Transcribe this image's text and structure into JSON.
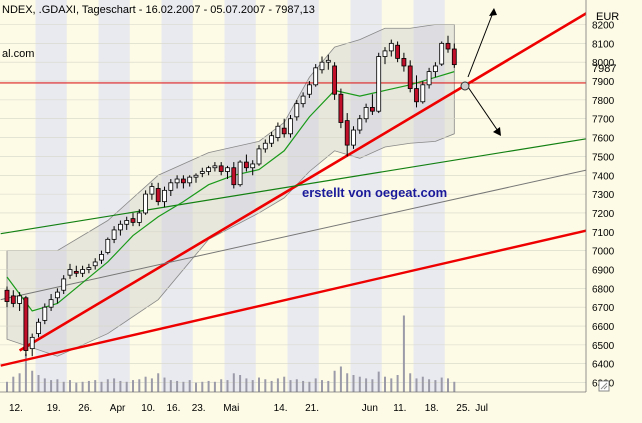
{
  "header": {
    "title": "NDEX, .GDAXI, Tageschart - 16.02.2007 - 05.07.2007 - 7987,13",
    "left_fragment": "al.com"
  },
  "currency_label": "EUR",
  "watermark": "erstellt von oegeat.com",
  "last_price_label": "7987",
  "chart_data": {
    "type": "candlestick",
    "title": "NDEX, .GDAXI, Tageschart - 16.02.2007 - 05.07.2007 - 7987,13",
    "ylim": [
      6250,
      8330
    ],
    "y_ticks": [
      6300,
      6400,
      6500,
      6600,
      6700,
      6800,
      6900,
      7000,
      7100,
      7200,
      7300,
      7400,
      7500,
      7600,
      7700,
      7800,
      7900,
      8000,
      8100,
      8200
    ],
    "x_ticks": [
      "12.",
      "19.",
      "26.",
      "Apr",
      "10.",
      "16.",
      "23.",
      "Mai",
      "14.",
      "21.",
      "Jun",
      "11.",
      "18.",
      "25.",
      "Jul"
    ],
    "horizontal_line": 7890,
    "candles_ohlc": [
      [
        6790,
        6810,
        6700,
        6730
      ],
      [
        6760,
        6790,
        6700,
        6720
      ],
      [
        6720,
        6780,
        6680,
        6760
      ],
      [
        6750,
        6760,
        6440,
        6470
      ],
      [
        6480,
        6560,
        6440,
        6540
      ],
      [
        6560,
        6640,
        6540,
        6620
      ],
      [
        6630,
        6720,
        6610,
        6700
      ],
      [
        6700,
        6770,
        6680,
        6740
      ],
      [
        6750,
        6800,
        6720,
        6780
      ],
      [
        6790,
        6870,
        6770,
        6850
      ],
      [
        6870,
        6930,
        6850,
        6900
      ],
      [
        6890,
        6920,
        6860,
        6880
      ],
      [
        6880,
        6920,
        6860,
        6900
      ],
      [
        6900,
        6930,
        6880,
        6910
      ],
      [
        6920,
        6960,
        6900,
        6940
      ],
      [
        6950,
        7000,
        6930,
        6980
      ],
      [
        6990,
        7070,
        6980,
        7060
      ],
      [
        7060,
        7130,
        7040,
        7110
      ],
      [
        7110,
        7160,
        7080,
        7140
      ],
      [
        7140,
        7180,
        7110,
        7160
      ],
      [
        7170,
        7200,
        7130,
        7150
      ],
      [
        7150,
        7220,
        7130,
        7200
      ],
      [
        7200,
        7320,
        7190,
        7300
      ],
      [
        7300,
        7360,
        7270,
        7340
      ],
      [
        7330,
        7360,
        7240,
        7260
      ],
      [
        7260,
        7340,
        7230,
        7320
      ],
      [
        7320,
        7380,
        7290,
        7360
      ],
      [
        7360,
        7400,
        7330,
        7380
      ],
      [
        7380,
        7400,
        7330,
        7360
      ],
      [
        7360,
        7400,
        7340,
        7390
      ],
      [
        7390,
        7410,
        7360,
        7400
      ],
      [
        7410,
        7440,
        7390,
        7420
      ],
      [
        7420,
        7450,
        7400,
        7440
      ],
      [
        7440,
        7470,
        7420,
        7450
      ],
      [
        7450,
        7470,
        7400,
        7420
      ],
      [
        7420,
        7450,
        7380,
        7440
      ],
      [
        7440,
        7470,
        7330,
        7350
      ],
      [
        7350,
        7480,
        7340,
        7470
      ],
      [
        7470,
        7510,
        7420,
        7440
      ],
      [
        7440,
        7480,
        7400,
        7460
      ],
      [
        7460,
        7560,
        7450,
        7540
      ],
      [
        7540,
        7590,
        7520,
        7570
      ],
      [
        7570,
        7630,
        7550,
        7610
      ],
      [
        7600,
        7680,
        7580,
        7660
      ],
      [
        7650,
        7700,
        7600,
        7620
      ],
      [
        7620,
        7720,
        7600,
        7700
      ],
      [
        7710,
        7800,
        7690,
        7780
      ],
      [
        7780,
        7840,
        7760,
        7820
      ],
      [
        7830,
        7900,
        7810,
        7880
      ],
      [
        7880,
        7990,
        7870,
        7970
      ],
      [
        7960,
        8030,
        7940,
        8000
      ],
      [
        8000,
        8040,
        7960,
        8010
      ],
      [
        7980,
        8000,
        7800,
        7830
      ],
      [
        7830,
        7860,
        7650,
        7680
      ],
      [
        7690,
        7730,
        7500,
        7560
      ],
      [
        7560,
        7660,
        7540,
        7640
      ],
      [
        7640,
        7720,
        7620,
        7700
      ],
      [
        7700,
        7780,
        7680,
        7760
      ],
      [
        7760,
        7830,
        7720,
        7740
      ],
      [
        7740,
        8050,
        7730,
        8030
      ],
      [
        8030,
        8080,
        7990,
        8060
      ],
      [
        8060,
        8120,
        8030,
        8100
      ],
      [
        8090,
        8110,
        8000,
        8020
      ],
      [
        8020,
        8050,
        7950,
        7980
      ],
      [
        7980,
        8010,
        7840,
        7860
      ],
      [
        7860,
        7930,
        7760,
        7790
      ],
      [
        7790,
        7900,
        7780,
        7880
      ],
      [
        7880,
        7970,
        7860,
        7950
      ],
      [
        7950,
        8000,
        7920,
        7980
      ],
      [
        7990,
        8110,
        7980,
        8100
      ],
      [
        8100,
        8140,
        8050,
        8070
      ],
      [
        8070,
        8100,
        7970,
        7987
      ]
    ],
    "volume": [
      12,
      18,
      22,
      45,
      25,
      20,
      16,
      14,
      15,
      12,
      14,
      11,
      12,
      13,
      14,
      12,
      15,
      16,
      13,
      12,
      14,
      15,
      18,
      16,
      22,
      17,
      14,
      13,
      12,
      14,
      11,
      12,
      13,
      12,
      15,
      14,
      22,
      20,
      16,
      14,
      17,
      15,
      13,
      16,
      18,
      14,
      15,
      13,
      12,
      16,
      14,
      13,
      25,
      30,
      22,
      20,
      18,
      16,
      15,
      24,
      18,
      16,
      20,
      90,
      22,
      16,
      18,
      15,
      14,
      17,
      16,
      12
    ],
    "bollinger_upper_points": [
      [
        0,
        7000
      ],
      [
        8,
        7000
      ],
      [
        16,
        7160
      ],
      [
        24,
        7400
      ],
      [
        32,
        7520
      ],
      [
        40,
        7580
      ],
      [
        44,
        7680
      ],
      [
        48,
        7920
      ],
      [
        52,
        8080
      ],
      [
        56,
        8120
      ],
      [
        60,
        8180
      ],
      [
        64,
        8180
      ],
      [
        68,
        8200
      ],
      [
        71,
        8200
      ]
    ],
    "bollinger_lower_points": [
      [
        0,
        6530
      ],
      [
        8,
        6440
      ],
      [
        16,
        6560
      ],
      [
        24,
        6740
      ],
      [
        32,
        7060
      ],
      [
        40,
        7200
      ],
      [
        44,
        7280
      ],
      [
        48,
        7420
      ],
      [
        52,
        7530
      ],
      [
        56,
        7490
      ],
      [
        60,
        7550
      ],
      [
        64,
        7570
      ],
      [
        68,
        7580
      ],
      [
        71,
        7620
      ]
    ],
    "moving_average_points": [
      [
        0,
        6860
      ],
      [
        4,
        6680
      ],
      [
        8,
        6720
      ],
      [
        12,
        6830
      ],
      [
        16,
        6940
      ],
      [
        20,
        7080
      ],
      [
        24,
        7180
      ],
      [
        28,
        7260
      ],
      [
        32,
        7350
      ],
      [
        36,
        7400
      ],
      [
        40,
        7430
      ],
      [
        44,
        7530
      ],
      [
        48,
        7710
      ],
      [
        52,
        7850
      ],
      [
        56,
        7820
      ],
      [
        60,
        7850
      ],
      [
        64,
        7880
      ],
      [
        68,
        7920
      ],
      [
        71,
        7950
      ]
    ]
  }
}
